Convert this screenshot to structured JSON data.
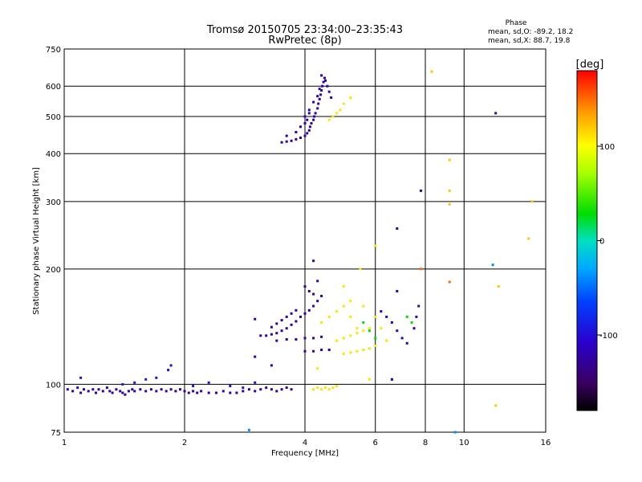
{
  "chart_data": {
    "type": "scatter",
    "title": "Tromsø 20150705 23:34:00–23:35:43",
    "subtitle": "RwPretec (8p)",
    "xlabel": "Frequency [MHz]",
    "ylabel": "Stationary phase Virtual Height [km]",
    "x_scale": "log",
    "y_scale": "log",
    "xlim": [
      1,
      16
    ],
    "ylim": [
      75,
      750
    ],
    "x_ticks": [
      1,
      2,
      4,
      6,
      8,
      10,
      16
    ],
    "y_ticks": [
      75,
      100,
      200,
      300,
      400,
      500,
      600,
      750
    ],
    "grid": true,
    "phase_box": {
      "title": "Phase",
      "line_o": "mean, sd,O: -89.2, 18.2",
      "line_x": "mean, sd,X: 88.7, 19.8"
    },
    "colorbar": {
      "label": "[deg]",
      "range": [
        -180,
        180
      ],
      "ticks": [
        -100,
        0,
        100
      ],
      "tick_labels": [
        "-100",
        "0",
        "100"
      ]
    },
    "series": [
      {
        "phase": -120,
        "points": [
          [
            1.02,
            97
          ],
          [
            1.05,
            96
          ],
          [
            1.08,
            98
          ],
          [
            1.1,
            95
          ],
          [
            1.12,
            97
          ],
          [
            1.15,
            96
          ],
          [
            1.18,
            97
          ],
          [
            1.2,
            95
          ],
          [
            1.22,
            97
          ],
          [
            1.25,
            96
          ],
          [
            1.28,
            98
          ],
          [
            1.3,
            96
          ],
          [
            1.32,
            95
          ],
          [
            1.35,
            97
          ],
          [
            1.38,
            96
          ],
          [
            1.4,
            95
          ],
          [
            1.42,
            94
          ],
          [
            1.45,
            96
          ],
          [
            1.48,
            97
          ],
          [
            1.5,
            96
          ],
          [
            1.55,
            97
          ],
          [
            1.6,
            96
          ],
          [
            1.65,
            97
          ],
          [
            1.7,
            96
          ],
          [
            1.75,
            97
          ],
          [
            1.8,
            96
          ],
          [
            1.85,
            97
          ],
          [
            1.9,
            96
          ],
          [
            1.95,
            97
          ],
          [
            2.0,
            96
          ],
          [
            2.05,
            95
          ],
          [
            2.1,
            96
          ],
          [
            2.15,
            95
          ],
          [
            2.2,
            96
          ],
          [
            2.3,
            95
          ],
          [
            2.4,
            95
          ],
          [
            2.5,
            96
          ],
          [
            2.6,
            95
          ],
          [
            2.7,
            95
          ],
          [
            2.8,
            96
          ],
          [
            2.9,
            97
          ],
          [
            3.0,
            96
          ],
          [
            3.1,
            97
          ],
          [
            3.2,
            98
          ],
          [
            3.3,
            97
          ],
          [
            3.4,
            96
          ],
          [
            3.5,
            97
          ],
          [
            3.6,
            98
          ],
          [
            3.7,
            97
          ]
        ]
      },
      {
        "phase": -95,
        "points": [
          [
            1.1,
            104
          ],
          [
            1.4,
            100
          ],
          [
            1.5,
            101
          ],
          [
            1.6,
            103
          ],
          [
            1.7,
            104
          ],
          [
            1.82,
            109
          ],
          [
            1.85,
            112
          ],
          [
            2.1,
            99
          ],
          [
            2.3,
            101
          ],
          [
            2.6,
            99
          ],
          [
            2.8,
            98
          ],
          [
            3.0,
            101
          ]
        ]
      },
      {
        "phase": -125,
        "points": [
          [
            3.0,
            148
          ],
          [
            3.1,
            134
          ],
          [
            3.2,
            134
          ],
          [
            3.3,
            135
          ],
          [
            3.4,
            136
          ],
          [
            3.5,
            138
          ],
          [
            3.6,
            140
          ],
          [
            3.7,
            143
          ],
          [
            3.8,
            146
          ],
          [
            3.9,
            150
          ],
          [
            4.0,
            153
          ],
          [
            4.1,
            156
          ],
          [
            4.2,
            160
          ],
          [
            4.3,
            165
          ],
          [
            3.3,
            141
          ],
          [
            3.4,
            144
          ],
          [
            3.5,
            147
          ],
          [
            3.6,
            150
          ],
          [
            3.7,
            153
          ],
          [
            3.8,
            156
          ],
          [
            3.4,
            130
          ],
          [
            3.6,
            131
          ],
          [
            3.8,
            131
          ],
          [
            4.0,
            132
          ],
          [
            4.2,
            132
          ],
          [
            4.4,
            133
          ],
          [
            4.0,
            122
          ],
          [
            4.2,
            122
          ],
          [
            4.4,
            123
          ],
          [
            4.6,
            123
          ],
          [
            3.0,
            118
          ],
          [
            3.3,
            112
          ],
          [
            4.0,
            180
          ],
          [
            4.1,
            175
          ],
          [
            4.2,
            172
          ],
          [
            4.3,
            186
          ],
          [
            4.4,
            170
          ],
          [
            4.2,
            210
          ]
        ]
      },
      {
        "phase": -120,
        "points": [
          [
            3.5,
            428
          ],
          [
            3.6,
            430
          ],
          [
            3.7,
            432
          ],
          [
            3.8,
            436
          ],
          [
            3.9,
            440
          ],
          [
            4.0,
            445
          ],
          [
            4.05,
            452
          ],
          [
            4.1,
            460
          ],
          [
            4.12,
            470
          ],
          [
            4.15,
            480
          ],
          [
            4.2,
            490
          ],
          [
            4.22,
            500
          ],
          [
            4.25,
            510
          ],
          [
            4.3,
            525
          ],
          [
            4.32,
            540
          ],
          [
            4.35,
            555
          ],
          [
            4.38,
            570
          ],
          [
            4.4,
            585
          ],
          [
            4.42,
            600
          ],
          [
            4.45,
            615
          ],
          [
            4.48,
            630
          ],
          [
            4.5,
            620
          ],
          [
            4.55,
            600
          ],
          [
            4.6,
            580
          ],
          [
            4.65,
            560
          ],
          [
            4.0,
            500
          ],
          [
            4.1,
            520
          ],
          [
            4.2,
            545
          ],
          [
            4.3,
            565
          ],
          [
            4.35,
            590
          ],
          [
            4.4,
            640
          ],
          [
            3.6,
            445
          ],
          [
            3.8,
            455
          ],
          [
            3.9,
            470
          ],
          [
            4.0,
            480
          ],
          [
            4.05,
            490
          ],
          [
            4.1,
            510
          ]
        ]
      },
      {
        "phase": 110,
        "points": [
          [
            4.2,
            97
          ],
          [
            4.3,
            98
          ],
          [
            4.4,
            97
          ],
          [
            4.5,
            98
          ],
          [
            4.6,
            97
          ],
          [
            4.7,
            98
          ],
          [
            4.8,
            99
          ],
          [
            4.4,
            145
          ],
          [
            4.6,
            150
          ],
          [
            4.8,
            155
          ],
          [
            5.0,
            160
          ],
          [
            5.2,
            150
          ],
          [
            5.4,
            140
          ],
          [
            4.8,
            130
          ],
          [
            5.0,
            132
          ],
          [
            5.2,
            134
          ],
          [
            5.4,
            136
          ],
          [
            5.6,
            138
          ],
          [
            5.8,
            140
          ],
          [
            5.0,
            120
          ],
          [
            5.2,
            121
          ],
          [
            5.4,
            122
          ],
          [
            5.6,
            123
          ],
          [
            5.8,
            124
          ],
          [
            6.0,
            126
          ],
          [
            5.2,
            165
          ],
          [
            5.6,
            160
          ],
          [
            6.0,
            150
          ],
          [
            6.2,
            140
          ],
          [
            6.4,
            130
          ],
          [
            5.0,
            180
          ],
          [
            4.6,
            490
          ],
          [
            4.7,
            500
          ],
          [
            4.8,
            510
          ],
          [
            4.9,
            520
          ],
          [
            5.0,
            540
          ],
          [
            5.2,
            560
          ],
          [
            6.0,
            230
          ],
          [
            5.5,
            200
          ],
          [
            5.8,
            103
          ],
          [
            4.3,
            110
          ]
        ]
      },
      {
        "phase": 30,
        "points": [
          [
            5.6,
            145
          ],
          [
            5.8,
            138
          ],
          [
            6.0,
            132
          ],
          [
            6.6,
            103
          ],
          [
            7.2,
            150
          ],
          [
            7.4,
            145
          ]
        ]
      },
      {
        "phase": -110,
        "points": [
          [
            6.2,
            155
          ],
          [
            6.4,
            150
          ],
          [
            6.6,
            145
          ],
          [
            6.8,
            138
          ],
          [
            7.0,
            132
          ],
          [
            7.2,
            128
          ],
          [
            7.5,
            140
          ],
          [
            7.6,
            150
          ],
          [
            7.7,
            160
          ],
          [
            6.8,
            175
          ],
          [
            6.6,
            103
          ],
          [
            12.0,
            510
          ],
          [
            7.8,
            320
          ],
          [
            6.8,
            255
          ]
        ]
      },
      {
        "phase": 120,
        "points": [
          [
            8.3,
            655
          ],
          [
            9.2,
            385
          ],
          [
            9.2,
            320
          ],
          [
            9.2,
            295
          ],
          [
            12.0,
            88
          ],
          [
            12.2,
            180
          ],
          [
            14.5,
            240
          ],
          [
            14.8,
            300
          ]
        ]
      },
      {
        "phase": 150,
        "points": [
          [
            9.2,
            185
          ],
          [
            7.8,
            200
          ]
        ]
      },
      {
        "phase": -40,
        "points": [
          [
            11.8,
            205
          ],
          [
            9.5,
            75
          ],
          [
            2.9,
            76
          ]
        ]
      }
    ]
  }
}
